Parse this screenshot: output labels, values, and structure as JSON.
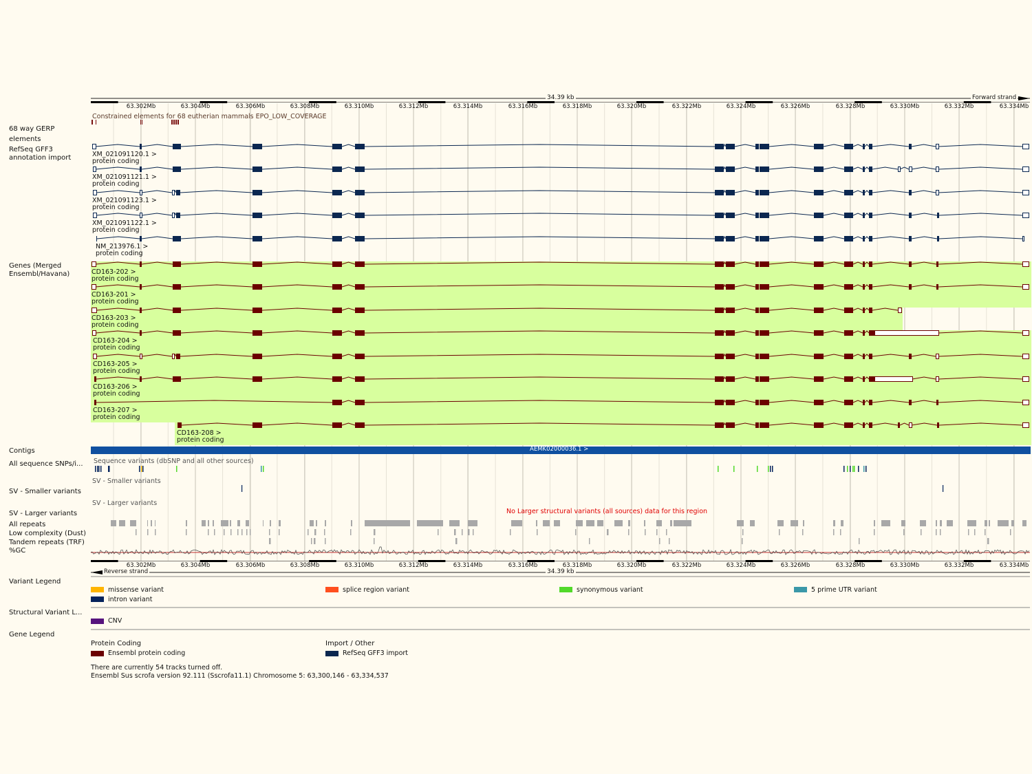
{
  "region": {
    "kb_label": "34.39 kb",
    "forward_strand": "Forward strand",
    "reverse_strand": "Reverse strand",
    "ticks": [
      "63.302Mb",
      "63.304Mb",
      "63.306Mb",
      "63.308Mb",
      "63.310Mb",
      "63.312Mb",
      "63.314Mb",
      "63.316Mb",
      "63.318Mb",
      "63.320Mb",
      "63.322Mb",
      "63.324Mb",
      "63.326Mb",
      "63.328Mb",
      "63.330Mb",
      "63.332Mb",
      "63.334Mb"
    ]
  },
  "track_labels": {
    "gerp": "68 way GERP elements",
    "refseq": "RefSeq GFF3 annotation import",
    "genes": "Genes (Merged Ensembl/Havana)",
    "contigs": "Contigs",
    "snps": "All sequence SNPs/i...",
    "sv_small": "SV - Smaller variants",
    "sv_large": "SV - Larger variants",
    "repeats": "All repeats",
    "low_complexity": "Low complexity (Dust)",
    "tandem": "Tandem repeats (TRF)",
    "gc": "%GC",
    "variant_legend": "Variant Legend",
    "sv_legend": "Structural Variant L...",
    "gene_legend": "Gene Legend"
  },
  "gerp_caption": "Constrained elements for 68 eutherian mammals EPO_LOW_COVERAGE",
  "refseq_transcripts": [
    {
      "name": "XM_021091120.1 >",
      "biotype": "protein coding"
    },
    {
      "name": "XM_021091121.1 >",
      "biotype": "protein coding"
    },
    {
      "name": "XM_021091123.1 >",
      "biotype": "protein coding"
    },
    {
      "name": "XM_021091122.1 >",
      "biotype": "protein coding"
    },
    {
      "name": "NM_213976.1 >",
      "biotype": "protein coding"
    }
  ],
  "gene_transcripts": [
    {
      "name": "CD163-202 >",
      "biotype": "protein coding"
    },
    {
      "name": "CD163-201 >",
      "biotype": "protein coding"
    },
    {
      "name": "CD163-203 >",
      "biotype": "protein coding"
    },
    {
      "name": "CD163-204 >",
      "biotype": "protein coding"
    },
    {
      "name": "CD163-205 >",
      "biotype": "protein coding"
    },
    {
      "name": "CD163-206 >",
      "biotype": "protein coding"
    },
    {
      "name": "CD163-207 >",
      "biotype": "protein coding"
    },
    {
      "name": "CD163-208 >",
      "biotype": "protein coding"
    }
  ],
  "contig_label": "AEMK02000036.1 >",
  "snp_caption": "Sequence variants (dbSNP and all other sources)",
  "sv_small_caption": "SV - Smaller variants",
  "sv_large_caption": "SV - Larger variants",
  "sv_large_note": "No Larger structural variants (all sources) data for this region",
  "variant_legend": [
    {
      "label": "missense variant",
      "color": "#ffb400"
    },
    {
      "label": "splice region variant",
      "color": "#ff4f1f"
    },
    {
      "label": "synonymous variant",
      "color": "#52d92a"
    },
    {
      "label": "5 prime UTR variant",
      "color": "#3b98a8"
    },
    {
      "label": "intron variant",
      "color": "#05235c"
    }
  ],
  "sv_legend": [
    {
      "label": "CNV",
      "color": "#56137d"
    }
  ],
  "gene_legend": {
    "protein_coding_heading": "Protein Coding",
    "import_heading": "Import / Other",
    "ensembl_label": "Ensembl protein coding",
    "refseq_label": "RefSeq GFF3 import",
    "ensembl_color": "#6b0000",
    "refseq_color": "#0b2750"
  },
  "footer": {
    "tracks_off": "There are currently 54 tracks turned off.",
    "assembly": "Ensembl Sus scrofa version 92.111 (Sscrofa11.1) Chromosome 5: 63,300,146 - 63,334,537"
  },
  "colors": {
    "page_bg": "#fffbf0",
    "gene_highlight": "#d8ff9e",
    "contig_bar": "#1050a0",
    "gc_line": "#c03030",
    "sv_note": "#e00000",
    "repeat_block": "#a8a8a8"
  }
}
